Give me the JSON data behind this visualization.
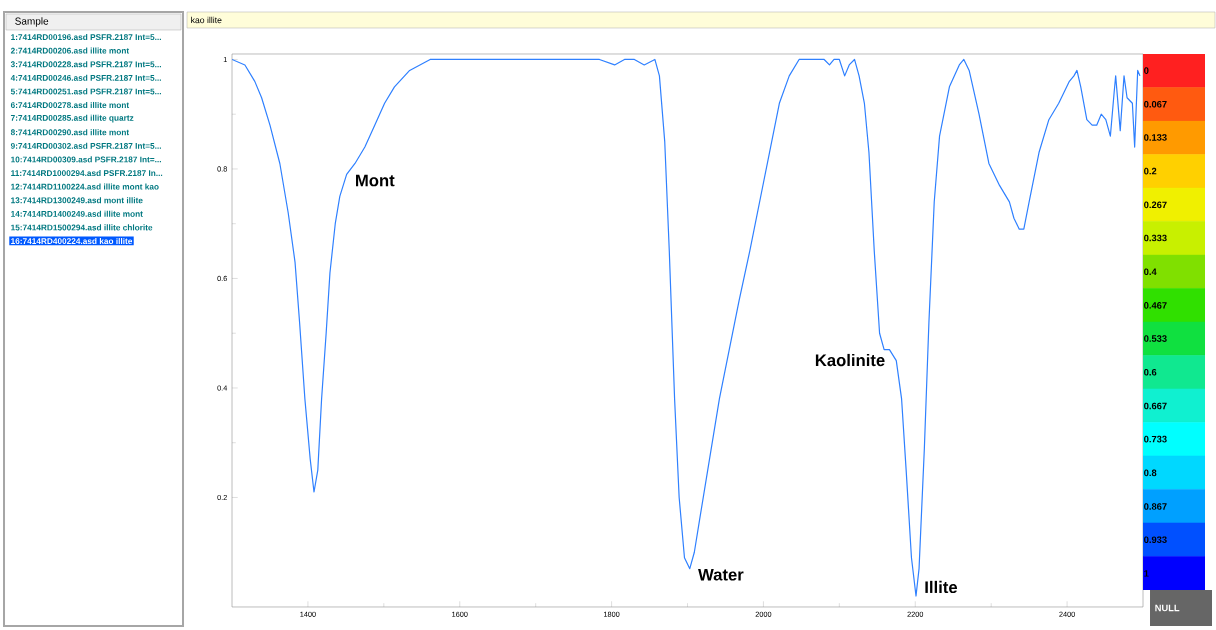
{
  "chart_data": {
    "type": "line",
    "title": "kao illite",
    "x": [
      1300,
      1317,
      1330,
      1339,
      1350,
      1363,
      1374,
      1383,
      1389,
      1396,
      1403,
      1408,
      1413,
      1418,
      1424,
      1429,
      1436,
      1442,
      1451,
      1462,
      1475,
      1488,
      1501,
      1514,
      1534,
      1561,
      1587,
      1653,
      1732,
      1784,
      1804,
      1817,
      1830,
      1843,
      1857,
      1863,
      1870,
      1876,
      1883,
      1889,
      1896,
      1903,
      1909,
      1916,
      1929,
      1942,
      1955,
      1968,
      1982,
      1995,
      2008,
      2021,
      2034,
      2047,
      2061,
      2074,
      2080,
      2087,
      2093,
      2100,
      2107,
      2113,
      2120,
      2126,
      2133,
      2139,
      2146,
      2153,
      2159,
      2166,
      2175,
      2182,
      2188,
      2195,
      2201,
      2205,
      2212,
      2218,
      2225,
      2232,
      2245,
      2258,
      2264,
      2271,
      2284,
      2297,
      2311,
      2324,
      2330,
      2337,
      2343,
      2350,
      2363,
      2376,
      2389,
      2396,
      2403,
      2409,
      2413,
      2418,
      2426,
      2433,
      2439,
      2445,
      2451,
      2457,
      2462,
      2464,
      2470,
      2475,
      2479,
      2486,
      2489,
      2493,
      2496
    ],
    "series": [
      {
        "color": "#2f80ff",
        "values": [
          1.0,
          0.99,
          0.96,
          0.93,
          0.88,
          0.81,
          0.72,
          0.63,
          0.52,
          0.38,
          0.27,
          0.21,
          0.25,
          0.38,
          0.5,
          0.61,
          0.7,
          0.75,
          0.79,
          0.81,
          0.84,
          0.88,
          0.92,
          0.95,
          0.98,
          1.0,
          1.0,
          1.0,
          1.0,
          1.0,
          0.99,
          1.0,
          1.0,
          0.99,
          1.0,
          0.97,
          0.85,
          0.65,
          0.38,
          0.2,
          0.09,
          0.07,
          0.1,
          0.16,
          0.27,
          0.38,
          0.47,
          0.56,
          0.65,
          0.74,
          0.83,
          0.92,
          0.97,
          1.0,
          1.0,
          1.0,
          1.0,
          0.99,
          1.0,
          1.0,
          0.97,
          0.99,
          1.0,
          0.97,
          0.92,
          0.83,
          0.65,
          0.5,
          0.47,
          0.47,
          0.45,
          0.38,
          0.25,
          0.09,
          0.02,
          0.07,
          0.29,
          0.52,
          0.74,
          0.86,
          0.95,
          0.99,
          1.0,
          0.98,
          0.9,
          0.81,
          0.77,
          0.74,
          0.71,
          0.69,
          0.69,
          0.74,
          0.83,
          0.89,
          0.92,
          0.94,
          0.96,
          0.97,
          0.98,
          0.95,
          0.89,
          0.88,
          0.88,
          0.9,
          0.89,
          0.86,
          0.94,
          0.97,
          0.87,
          0.97,
          0.93,
          0.92,
          0.84,
          0.98,
          0.97
        ]
      }
    ],
    "xlim": [
      1300,
      2500
    ],
    "ylim": [
      0,
      1.01
    ],
    "xticks": [
      1400,
      1600,
      1800,
      2000,
      2200,
      2400
    ],
    "yticks": [
      0.2,
      0.4,
      0.6,
      0.8,
      1
    ],
    "clim": [
      -0.033,
      1.033
    ],
    "cticks": [
      0,
      0.067,
      0.133,
      0.2,
      0.267,
      0.333,
      0.4,
      0.467,
      0.533,
      0.6,
      0.667,
      0.733,
      0.8,
      0.867,
      0.933,
      1
    ],
    "annotations": [
      "Sample",
      "1:7414RD00196.asd  PSFR.2187 Int=5...",
      "2:7414RD00206.asd  illite mont",
      "3:7414RD00228.asd  PSFR.2187 Int=5...",
      "4:7414RD00246.asd  PSFR.2187 Int=5...",
      "5:7414RD00251.asd  PSFR.2187 Int=5...",
      "6:7414RD00278.asd  illite mont",
      "7:7414RD00285.asd  illite quartz",
      "8:7414RD00290.asd  illite mont",
      "9:7414RD00302.asd  PSFR.2187 Int=5...",
      "10:7414RD00309.asd  PSFR.2187 Int=...",
      "11:7414RD1000294.asd  PSFR.2187 In...",
      "12:7414RD1100224.asd  illite mont kao",
      "13:7414RD1300249.asd  mont illite",
      "14:7414RD1400249.asd  illite mont",
      "15:7414RD1500294.asd  illite chlorite",
      "16:7414RD400224.asd  kao illite",
      "NULL",
      {
        "text": "Mont",
        "x": 1451,
        "y": 0.79
      },
      {
        "text": "Water",
        "x": 1903,
        "y": 0.07
      },
      {
        "text": "Kaolinite",
        "x": 2166,
        "y": 0.47
      },
      {
        "text": "Illite",
        "x": 2201,
        "y": 0.02
      }
    ]
  }
}
